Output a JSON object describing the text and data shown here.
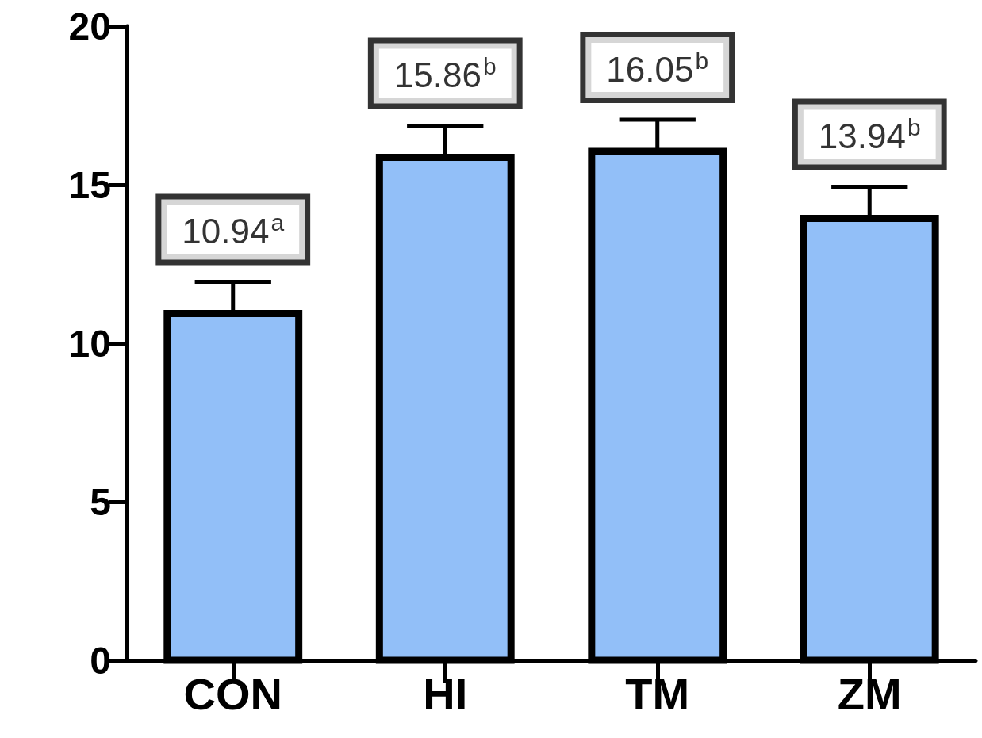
{
  "chart_data": {
    "type": "bar",
    "categories": [
      "CON",
      "HI",
      "TM",
      "ZM"
    ],
    "values": [
      10.94,
      15.86,
      16.05,
      13.94
    ],
    "errors": [
      [
        10.94,
        11.94
      ],
      [
        15.86,
        16.86
      ],
      [
        16.05,
        17.05
      ],
      [
        13.94,
        14.94
      ]
    ],
    "value_labels": [
      "10.94$^{a}$",
      "15.86$^{b}$",
      "16.05$^{b}$",
      "13.94$^{b}$"
    ],
    "color": "#92bff8",
    "ylim": [
      0,
      20
    ],
    "yticks": [
      0,
      5,
      10,
      15,
      20
    ],
    "grid": false
  }
}
